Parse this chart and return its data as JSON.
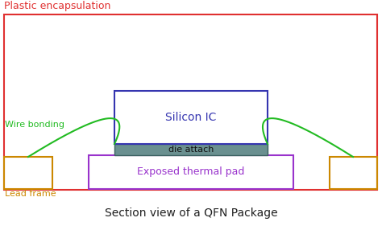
{
  "title": "Section view of a QFN Package",
  "title_fontsize": 10,
  "bg_color": "#ffffff",
  "fig_width": 4.74,
  "fig_height": 2.81,
  "plastic_encap_label": "Plastic encapsulation",
  "plastic_encap_color": "#e03030",
  "silicon_ic_label": "Silicon IC",
  "silicon_ic_color": "#3535b0",
  "die_attach_label": "die attach",
  "die_attach_bg_color": "#506060",
  "thermal_pad_label": "Exposed thermal pad",
  "thermal_pad_color": "#9933cc",
  "lead_frame_label": "Lead frame",
  "lead_frame_color": "#cc8800",
  "wire_bonding_label": "Wire bonding",
  "wire_bonding_color": "#22bb22"
}
